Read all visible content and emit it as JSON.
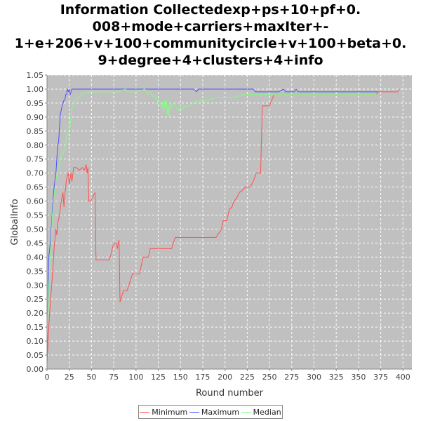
{
  "chart_data": {
    "type": "line",
    "title_lines": [
      "Information Collectedexp+ps+10+pf+0.",
      "008+mode+carriers+maxIter+-",
      "1+e+206+v+100+communitycircle+v+100+beta+0.",
      "9+degree+4+clusters+4+info"
    ],
    "xlabel": "Round number",
    "ylabel": "GlobalInfo",
    "xlim": [
      0,
      410
    ],
    "ylim": [
      0,
      1.05
    ],
    "x_ticks": [
      0,
      25,
      50,
      75,
      100,
      125,
      150,
      175,
      200,
      225,
      250,
      275,
      300,
      325,
      350,
      375,
      400
    ],
    "y_ticks": [
      "0.00",
      "0.05",
      "0.10",
      "0.15",
      "0.20",
      "0.25",
      "0.30",
      "0.35",
      "0.40",
      "0.45",
      "0.50",
      "0.55",
      "0.60",
      "0.65",
      "0.70",
      "0.75",
      "0.80",
      "0.85",
      "0.90",
      "0.95",
      "1.00",
      "1.05"
    ],
    "grid": true,
    "legend_position": "bottom",
    "plot_background": "#c0c0c0",
    "series": [
      {
        "name": "Minimum",
        "color": "#ff5050",
        "points": [
          [
            0,
            0.02
          ],
          [
            2,
            0.15
          ],
          [
            4,
            0.25
          ],
          [
            6,
            0.33
          ],
          [
            8,
            0.43
          ],
          [
            10,
            0.5
          ],
          [
            11,
            0.48
          ],
          [
            12,
            0.52
          ],
          [
            14,
            0.55
          ],
          [
            16,
            0.6
          ],
          [
            18,
            0.63
          ],
          [
            19,
            0.58
          ],
          [
            20,
            0.62
          ],
          [
            22,
            0.68
          ],
          [
            24,
            0.7
          ],
          [
            25,
            0.66
          ],
          [
            27,
            0.7
          ],
          [
            28,
            0.67
          ],
          [
            30,
            0.72
          ],
          [
            33,
            0.72
          ],
          [
            36,
            0.71
          ],
          [
            40,
            0.72
          ],
          [
            42,
            0.71
          ],
          [
            44,
            0.73
          ],
          [
            45,
            0.7
          ],
          [
            46,
            0.72
          ],
          [
            47,
            0.6
          ],
          [
            49,
            0.6
          ],
          [
            52,
            0.62
          ],
          [
            54,
            0.63
          ],
          [
            55,
            0.39
          ],
          [
            60,
            0.39
          ],
          [
            65,
            0.39
          ],
          [
            70,
            0.39
          ],
          [
            72,
            0.41
          ],
          [
            74,
            0.44
          ],
          [
            76,
            0.45
          ],
          [
            78,
            0.45
          ],
          [
            79,
            0.43
          ],
          [
            80,
            0.45
          ],
          [
            81,
            0.46
          ],
          [
            82,
            0.24
          ],
          [
            84,
            0.26
          ],
          [
            86,
            0.28
          ],
          [
            90,
            0.28
          ],
          [
            94,
            0.32
          ],
          [
            96,
            0.34
          ],
          [
            104,
            0.34
          ],
          [
            106,
            0.37
          ],
          [
            108,
            0.4
          ],
          [
            114,
            0.4
          ],
          [
            116,
            0.43
          ],
          [
            124,
            0.43
          ],
          [
            132,
            0.43
          ],
          [
            140,
            0.43
          ],
          [
            142,
            0.45
          ],
          [
            144,
            0.47
          ],
          [
            150,
            0.47
          ],
          [
            160,
            0.47
          ],
          [
            170,
            0.47
          ],
          [
            180,
            0.47
          ],
          [
            190,
            0.47
          ],
          [
            196,
            0.5
          ],
          [
            198,
            0.53
          ],
          [
            202,
            0.53
          ],
          [
            205,
            0.57
          ],
          [
            208,
            0.58
          ],
          [
            210,
            0.6
          ],
          [
            213,
            0.61
          ],
          [
            216,
            0.63
          ],
          [
            220,
            0.64
          ],
          [
            223,
            0.65
          ],
          [
            228,
            0.65
          ],
          [
            230,
            0.66
          ],
          [
            233,
            0.68
          ],
          [
            235,
            0.7
          ],
          [
            240,
            0.7
          ],
          [
            242,
            0.94
          ],
          [
            245,
            0.94
          ],
          [
            250,
            0.94
          ],
          [
            255,
            0.98
          ],
          [
            260,
            0.98
          ],
          [
            280,
            0.98
          ],
          [
            300,
            0.98
          ],
          [
            340,
            0.98
          ],
          [
            370,
            0.98
          ],
          [
            372,
            0.99
          ],
          [
            380,
            0.99
          ],
          [
            388,
            0.99
          ],
          [
            394,
            0.99
          ],
          [
            396,
            1.0
          ]
        ]
      },
      {
        "name": "Maximum",
        "color": "#5050ff",
        "points": [
          [
            0,
            0.05
          ],
          [
            2,
            0.4
          ],
          [
            4,
            0.46
          ],
          [
            6,
            0.57
          ],
          [
            8,
            0.65
          ],
          [
            10,
            0.7
          ],
          [
            12,
            0.8
          ],
          [
            13,
            0.81
          ],
          [
            15,
            0.91
          ],
          [
            17,
            0.94
          ],
          [
            19,
            0.96
          ],
          [
            20,
            0.96
          ],
          [
            21,
            0.98
          ],
          [
            22,
            0.98
          ],
          [
            23,
            1.0
          ],
          [
            24,
            0.99
          ],
          [
            25,
            1.0
          ],
          [
            26,
            0.98
          ],
          [
            28,
            1.0
          ],
          [
            40,
            1.0
          ],
          [
            80,
            1.0
          ],
          [
            120,
            1.0
          ],
          [
            165,
            1.0
          ],
          [
            168,
            0.99
          ],
          [
            170,
            1.0
          ],
          [
            200,
            1.0
          ],
          [
            220,
            1.0
          ],
          [
            232,
            1.0
          ],
          [
            234,
            0.99
          ],
          [
            250,
            0.99
          ],
          [
            255,
            0.99
          ],
          [
            260,
            0.99
          ],
          [
            266,
            1.0
          ],
          [
            268,
            0.99
          ],
          [
            278,
            0.99
          ],
          [
            280,
            1.0
          ],
          [
            282,
            0.99
          ],
          [
            300,
            0.99
          ],
          [
            350,
            0.99
          ],
          [
            372,
            0.99
          ]
        ]
      },
      {
        "name": "Median",
        "color": "#80ff80",
        "points": [
          [
            0,
            0.1
          ],
          [
            2,
            0.3
          ],
          [
            4,
            0.42
          ],
          [
            6,
            0.55
          ],
          [
            8,
            0.62
          ],
          [
            10,
            0.68
          ],
          [
            12,
            0.7
          ],
          [
            14,
            0.73
          ],
          [
            16,
            0.76
          ],
          [
            18,
            0.77
          ],
          [
            20,
            0.79
          ],
          [
            22,
            0.83
          ],
          [
            24,
            0.85
          ],
          [
            26,
            0.87
          ],
          [
            28,
            0.93
          ],
          [
            30,
            0.95
          ],
          [
            32,
            0.96
          ],
          [
            35,
            0.97
          ],
          [
            40,
            0.98
          ],
          [
            45,
            0.99
          ],
          [
            50,
            0.99
          ],
          [
            60,
            0.99
          ],
          [
            70,
            0.99
          ],
          [
            80,
            0.99
          ],
          [
            88,
            1.0
          ],
          [
            90,
            0.99
          ],
          [
            100,
            0.99
          ],
          [
            110,
            1.0
          ],
          [
            113,
            0.98
          ],
          [
            115,
            0.99
          ],
          [
            118,
            0.98
          ],
          [
            120,
            0.97
          ],
          [
            122,
            0.98
          ],
          [
            124,
            0.96
          ],
          [
            126,
            0.94
          ],
          [
            128,
            0.95
          ],
          [
            129,
            0.93
          ],
          [
            130,
            0.95
          ],
          [
            131,
            0.92
          ],
          [
            132,
            0.96
          ],
          [
            133,
            0.93
          ],
          [
            134,
            0.96
          ],
          [
            135,
            0.91
          ],
          [
            136,
            0.94
          ],
          [
            137,
            0.9
          ],
          [
            138,
            0.95
          ],
          [
            140,
            0.93
          ],
          [
            142,
            0.95
          ],
          [
            144,
            0.94
          ],
          [
            146,
            0.93
          ],
          [
            148,
            0.92
          ],
          [
            150,
            0.94
          ],
          [
            152,
            0.93
          ],
          [
            155,
            0.94
          ],
          [
            160,
            0.94
          ],
          [
            165,
            0.95
          ],
          [
            170,
            0.96
          ],
          [
            175,
            0.96
          ],
          [
            180,
            0.96
          ],
          [
            190,
            0.97
          ],
          [
            200,
            0.97
          ],
          [
            210,
            0.97
          ],
          [
            220,
            0.98
          ],
          [
            230,
            0.98
          ],
          [
            240,
            0.98
          ],
          [
            250,
            0.98
          ],
          [
            260,
            0.98
          ],
          [
            280,
            0.98
          ],
          [
            300,
            0.98
          ],
          [
            340,
            0.98
          ],
          [
            372,
            0.98
          ]
        ]
      }
    ]
  }
}
